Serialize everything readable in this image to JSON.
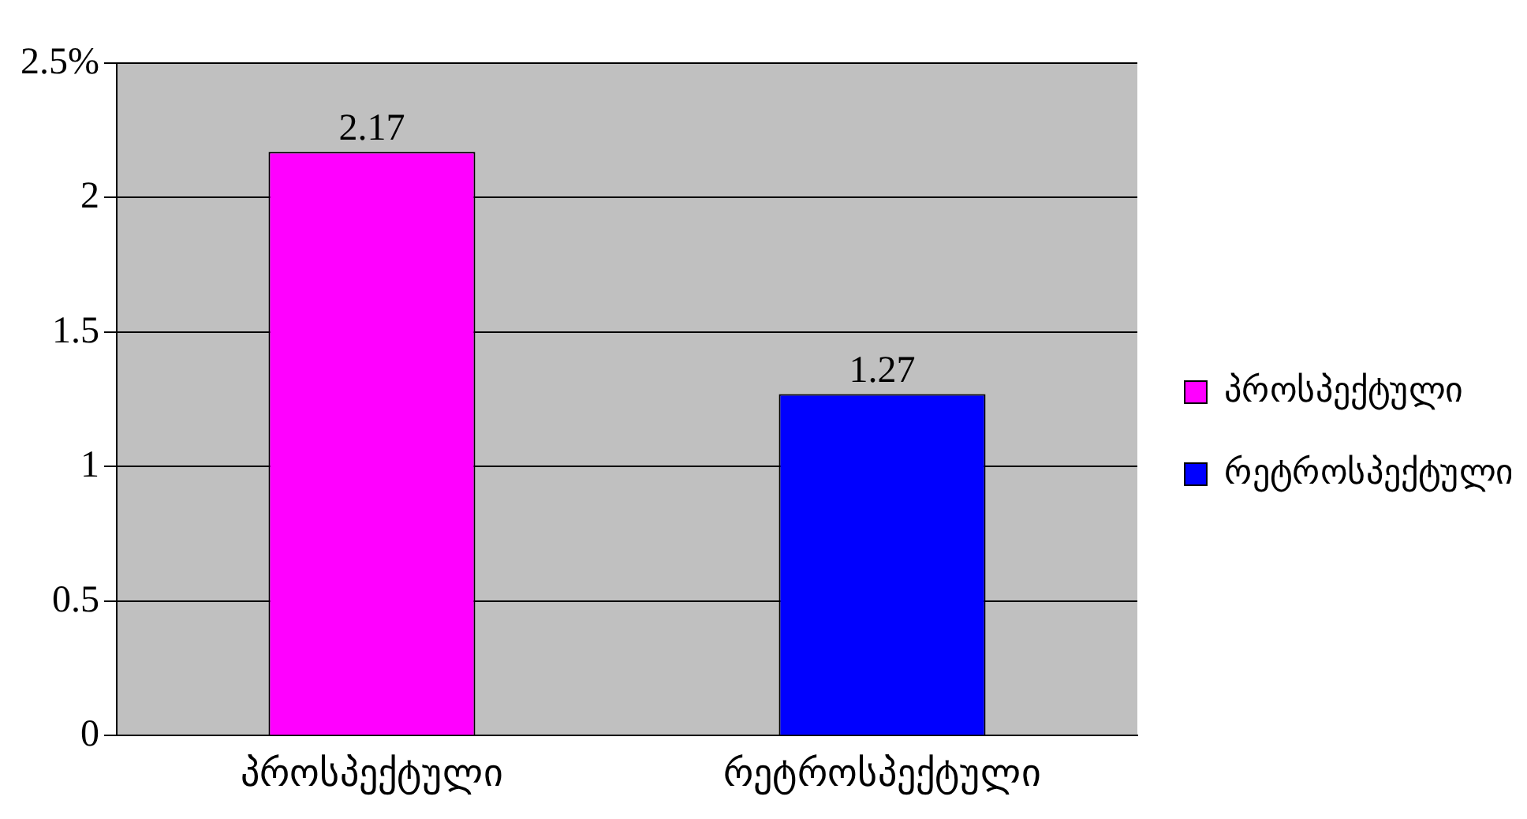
{
  "chart_data": {
    "type": "bar",
    "categories": [
      "პროსპექტული",
      "რეტროსპექტული"
    ],
    "series": [
      {
        "name": "პროსპექტული",
        "color": "#ff00ff",
        "values": [
          2.17,
          null
        ]
      },
      {
        "name": "რეტროსპექტული",
        "color": "#0000ff",
        "values": [
          null,
          1.27
        ]
      }
    ],
    "ylim": [
      0,
      2.5
    ],
    "yticks": [
      0,
      0.5,
      1,
      1.5,
      2,
      {
        "value": 2.5,
        "label": "2.5%"
      }
    ],
    "grid": "y",
    "legend": "right",
    "data_labels": true
  }
}
